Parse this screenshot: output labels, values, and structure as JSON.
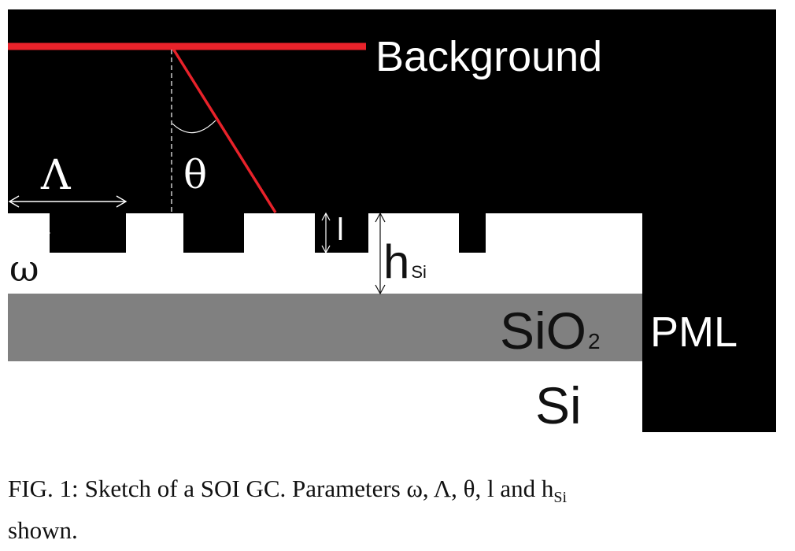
{
  "diagram": {
    "labels": {
      "background": "Background",
      "theta": "θ",
      "period": "Λ",
      "width": "ω",
      "etch_depth": "l",
      "h_main": "h",
      "h_sub": "Si",
      "oxide_main": "SiO",
      "oxide_sub": "2",
      "pml": "PML",
      "substrate": "Si"
    },
    "colors": {
      "background_region": "#000000",
      "silicon": "#ffffff",
      "oxide": "#808080",
      "incident_beam": "#e8222a",
      "text_on_dark": "#ffffff",
      "text_on_light": "#111111"
    }
  },
  "caption": {
    "fig_id": "FIG. 1:",
    "text": "Sketch of a SOI GC. Parameters ω, Λ, θ, l and h",
    "sub": "Si",
    "text_end": "shown."
  }
}
